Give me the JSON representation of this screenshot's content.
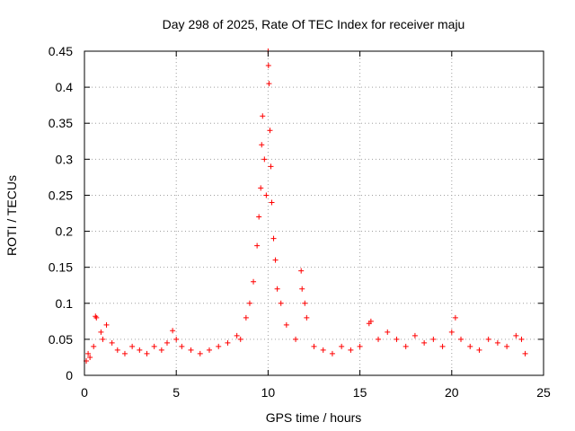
{
  "chart_data": {
    "type": "scatter",
    "title": "Day 298 of 2025, Rate Of TEC Index for receiver maju",
    "xlabel": "GPS time / hours",
    "ylabel": "ROTI / TECUs",
    "xlim": [
      0,
      25
    ],
    "ylim": [
      0,
      0.45
    ],
    "x_ticks": [
      0,
      5,
      10,
      15,
      20,
      25
    ],
    "y_ticks": [
      0,
      0.05,
      0.1,
      0.15,
      0.2,
      0.25,
      0.3,
      0.35,
      0.4,
      0.45
    ],
    "x_tick_labels": [
      "0",
      "5",
      "10",
      "15",
      "20",
      "25"
    ],
    "y_tick_labels": [
      "0",
      "0.05",
      "0.1",
      "0.15",
      "0.2",
      "0.25",
      "0.3",
      "0.35",
      "0.4",
      "0.45"
    ],
    "grid": true,
    "marker": "+",
    "series": [
      {
        "name": "ROTI",
        "color": "#ff0000",
        "points": [
          [
            0.1,
            0.02
          ],
          [
            0.2,
            0.03
          ],
          [
            0.3,
            0.025
          ],
          [
            0.5,
            0.04
          ],
          [
            0.6,
            0.082
          ],
          [
            0.65,
            0.08
          ],
          [
            0.9,
            0.06
          ],
          [
            1.0,
            0.05
          ],
          [
            1.2,
            0.07
          ],
          [
            1.5,
            0.045
          ],
          [
            1.8,
            0.035
          ],
          [
            2.2,
            0.03
          ],
          [
            2.6,
            0.04
          ],
          [
            3.0,
            0.035
          ],
          [
            3.4,
            0.03
          ],
          [
            3.8,
            0.04
          ],
          [
            4.2,
            0.035
          ],
          [
            4.5,
            0.045
          ],
          [
            4.8,
            0.062
          ],
          [
            5.0,
            0.05
          ],
          [
            5.3,
            0.04
          ],
          [
            5.8,
            0.035
          ],
          [
            6.3,
            0.03
          ],
          [
            6.8,
            0.035
          ],
          [
            7.3,
            0.04
          ],
          [
            7.8,
            0.045
          ],
          [
            8.3,
            0.055
          ],
          [
            8.5,
            0.05
          ],
          [
            8.8,
            0.08
          ],
          [
            9.0,
            0.1
          ],
          [
            9.2,
            0.13
          ],
          [
            9.4,
            0.18
          ],
          [
            9.5,
            0.22
          ],
          [
            9.6,
            0.26
          ],
          [
            9.65,
            0.32
          ],
          [
            9.7,
            0.36
          ],
          [
            9.8,
            0.3
          ],
          [
            9.9,
            0.25
          ],
          [
            10.0,
            0.45
          ],
          [
            10.02,
            0.43
          ],
          [
            10.05,
            0.405
          ],
          [
            10.1,
            0.34
          ],
          [
            10.15,
            0.29
          ],
          [
            10.2,
            0.24
          ],
          [
            10.3,
            0.19
          ],
          [
            10.4,
            0.16
          ],
          [
            10.5,
            0.12
          ],
          [
            10.7,
            0.1
          ],
          [
            11.0,
            0.07
          ],
          [
            11.5,
            0.05
          ],
          [
            11.8,
            0.145
          ],
          [
            11.85,
            0.12
          ],
          [
            12.0,
            0.1
          ],
          [
            12.1,
            0.08
          ],
          [
            12.5,
            0.04
          ],
          [
            13.0,
            0.035
          ],
          [
            13.5,
            0.03
          ],
          [
            14.0,
            0.04
          ],
          [
            14.5,
            0.035
          ],
          [
            15.0,
            0.04
          ],
          [
            15.5,
            0.072
          ],
          [
            15.6,
            0.075
          ],
          [
            16.0,
            0.05
          ],
          [
            16.5,
            0.06
          ],
          [
            17.0,
            0.05
          ],
          [
            17.5,
            0.04
          ],
          [
            18.0,
            0.055
          ],
          [
            18.5,
            0.045
          ],
          [
            19.0,
            0.05
          ],
          [
            19.5,
            0.04
          ],
          [
            20.0,
            0.06
          ],
          [
            20.2,
            0.08
          ],
          [
            20.5,
            0.05
          ],
          [
            21.0,
            0.04
          ],
          [
            21.5,
            0.035
          ],
          [
            22.0,
            0.05
          ],
          [
            22.5,
            0.045
          ],
          [
            23.0,
            0.04
          ],
          [
            23.5,
            0.055
          ],
          [
            23.8,
            0.05
          ],
          [
            24.0,
            0.03
          ]
        ]
      }
    ]
  }
}
